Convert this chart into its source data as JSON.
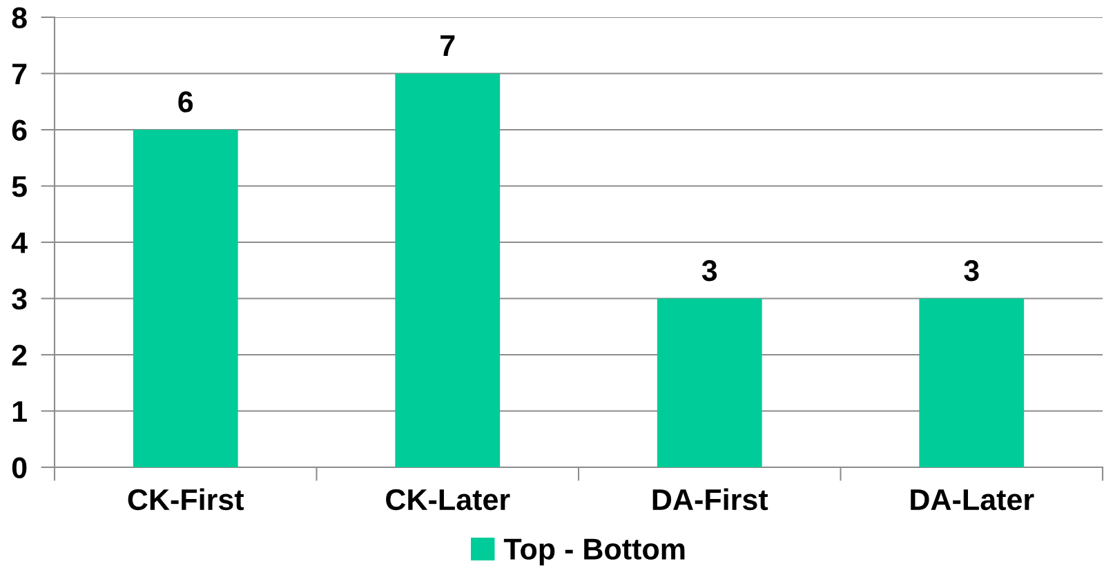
{
  "chart_data": {
    "type": "bar",
    "categories": [
      "CK-First",
      "CK-Later",
      "DA-First",
      "DA-Later"
    ],
    "series": [
      {
        "name": "Top - Bottom",
        "color": "#00cc99",
        "values": [
          6,
          7,
          3,
          3
        ]
      }
    ],
    "ylim": [
      0,
      8
    ],
    "yticks": [
      0,
      1,
      2,
      3,
      4,
      5,
      6,
      7,
      8
    ],
    "grid": "y",
    "legend": "bottom",
    "data_labels": true
  }
}
